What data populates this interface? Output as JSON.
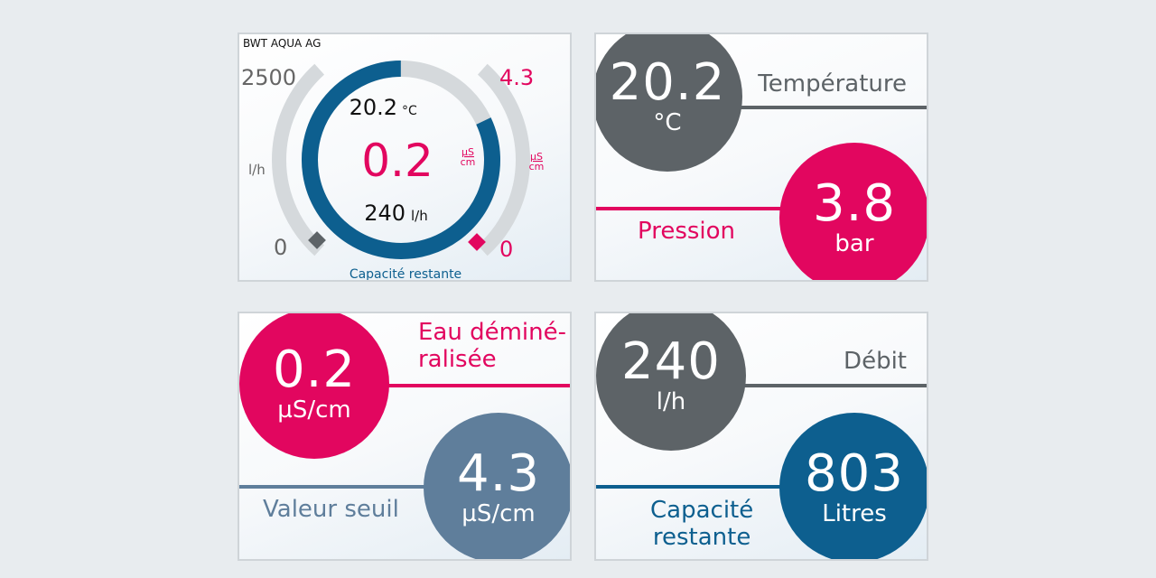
{
  "colors": {
    "blue": "#0d5f8f",
    "pink": "#e2065f",
    "gray": "#5d6367",
    "slate": "#5f7e9b",
    "track": "#d5d9dc"
  },
  "gauge": {
    "company": "BWT AQUA AG",
    "flow_max": "2500",
    "flow_min": "0",
    "flow_unit": "l/h",
    "cond_max": "4.3",
    "cond_min": "0",
    "cond_unit_num": "µS",
    "cond_unit_den": "cm",
    "temperature": "20.2",
    "temperature_unit": "°C",
    "conductivity": "0.2",
    "flow": "240",
    "flow_unit_inner": "l/h",
    "capacity_label": "Capacité restante",
    "capacity_fraction": 0.82
  },
  "temperature_panel": {
    "value": "20.2",
    "unit": "°C",
    "label": "Température"
  },
  "pressure_panel": {
    "value": "3.8",
    "unit": "bar",
    "label": "Pression"
  },
  "demin_panel": {
    "value": "0.2",
    "unit": "µS/cm",
    "label_line1": "Eau déminé-",
    "label_line2": "ralisée"
  },
  "threshold_panel": {
    "value": "4.3",
    "unit": "µS/cm",
    "label": "Valeur seuil"
  },
  "flow_panel": {
    "value": "240",
    "unit": "l/h",
    "label": "Débit"
  },
  "capacity_panel": {
    "value": "803",
    "unit": "Litres",
    "label_line1": "Capacité",
    "label_line2": "restante"
  }
}
